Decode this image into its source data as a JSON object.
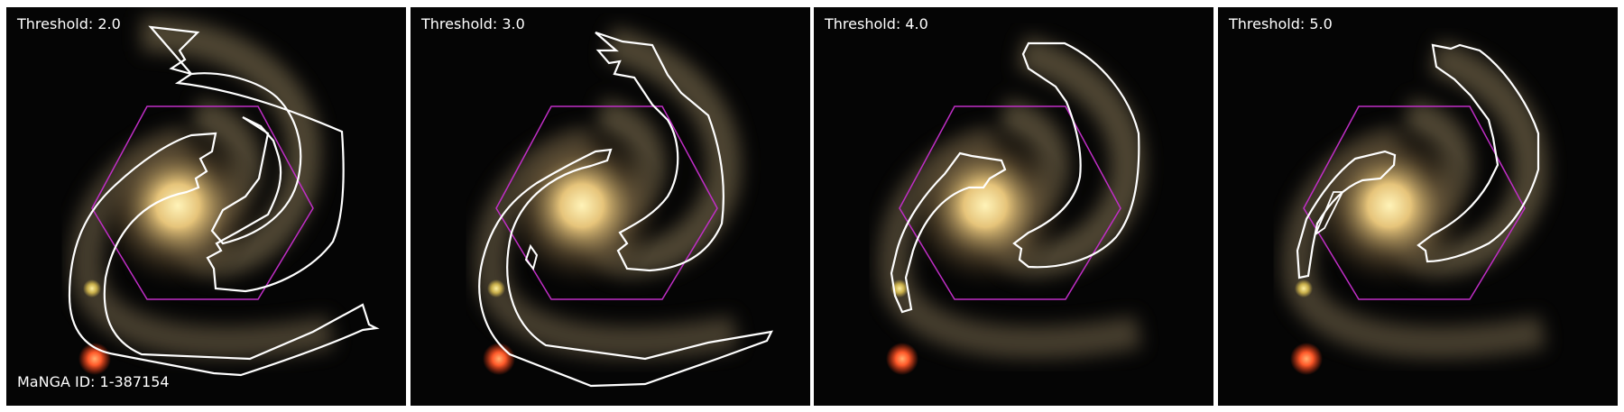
{
  "panels": [
    {
      "title": "Threshold: 2.0",
      "id_label": "MaNGA ID: 1-387154"
    },
    {
      "title": "Threshold: 3.0",
      "id_label": ""
    },
    {
      "title": "Threshold: 4.0",
      "id_label": ""
    },
    {
      "title": "Threshold: 5.0",
      "id_label": ""
    }
  ],
  "colors": {
    "contour": "#ffffff",
    "hexagon": "#c02ec6",
    "background": "#050505",
    "galaxy_core": "#f6dc8c",
    "galaxy_arm": "#8a7a58",
    "red_star": "#ff5a2a",
    "yellow_star": "#e8d060"
  }
}
